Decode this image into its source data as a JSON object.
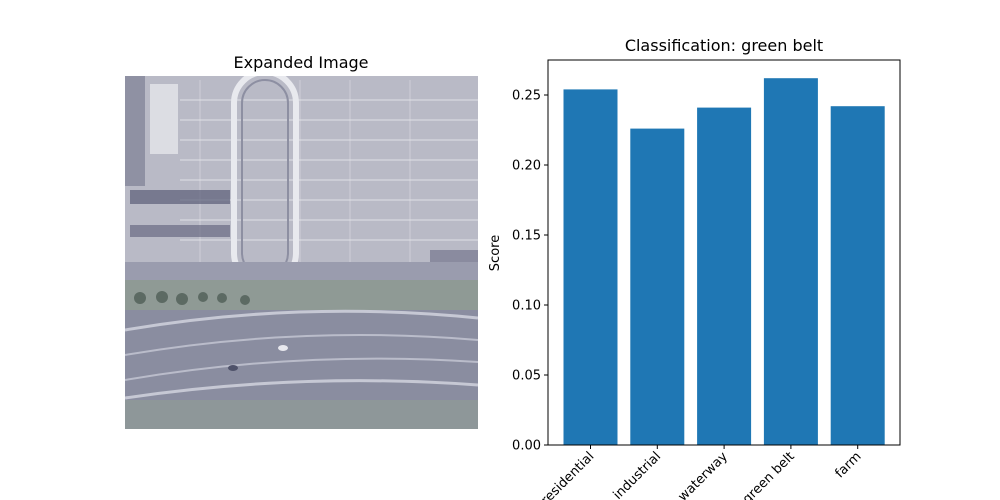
{
  "left_panel": {
    "title": "Expanded Image"
  },
  "chart_data": {
    "type": "bar",
    "title": "Classification: green belt",
    "xlabel": "",
    "ylabel": "Score",
    "categories": [
      "residential",
      "industrial",
      "waterway",
      "green belt",
      "farm"
    ],
    "values": [
      0.254,
      0.226,
      0.241,
      0.262,
      0.242
    ],
    "ylim": [
      0,
      0.275
    ],
    "yticks": [
      0.0,
      0.05,
      0.1,
      0.15,
      0.2,
      0.25
    ],
    "ytick_labels": [
      "0.00",
      "0.05",
      "0.10",
      "0.15",
      "0.20",
      "0.25"
    ],
    "bar_color": "#1f77b4",
    "grid": false,
    "legend": "none"
  }
}
